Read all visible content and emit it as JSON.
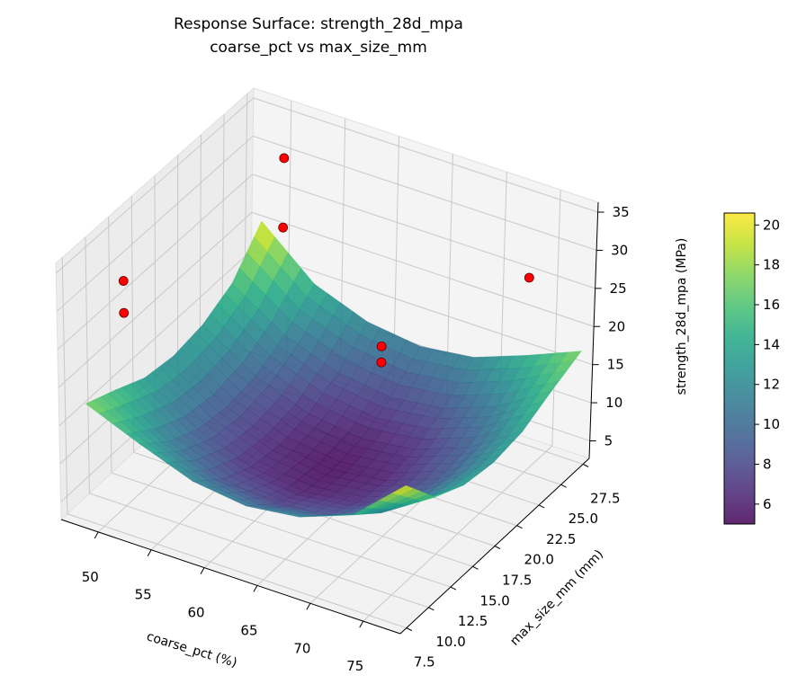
{
  "chart_data": {
    "type": "surface3d",
    "title": "Response Surface: strength_28d_mpa",
    "subtitle": "coarse_pct vs max_size_mm",
    "xlabel": "coarse_pct (%)",
    "ylabel": "max_size_mm (mm)",
    "zlabel": "strength_28d_mpa (MPa)",
    "xlim": [
      46.5,
      78.5
    ],
    "ylim": [
      6.8,
      28.2
    ],
    "zlim": [
      2.7,
      36.3
    ],
    "xticks": [
      "50",
      "55",
      "60",
      "65",
      "70",
      "75"
    ],
    "yticks": [
      "7.5",
      "10.0",
      "12.5",
      "15.0",
      "17.5",
      "20.0",
      "22.5",
      "25.0",
      "27.5"
    ],
    "zticks": [
      "5",
      "10",
      "15",
      "20",
      "25",
      "30",
      "35"
    ],
    "grid": true,
    "colormap": "viridis",
    "surface": {
      "x": [
        48,
        53,
        58,
        63,
        68,
        73,
        78
      ],
      "y": [
        8,
        11.25,
        14.5,
        17.75,
        21,
        24.25,
        27.5
      ],
      "z": [
        [
          17.3,
          14.4,
          11.8,
          10.9,
          11.8,
          14.4,
          20.6
        ],
        [
          15.6,
          11.2,
          8.6,
          7.7,
          8.6,
          11.2,
          15.6
        ],
        [
          13.7,
          9.3,
          6.7,
          5.8,
          6.7,
          9.3,
          13.7
        ],
        [
          13.1,
          8.7,
          6.1,
          5.2,
          6.1,
          8.7,
          13.1
        ],
        [
          13.7,
          9.3,
          6.7,
          5.8,
          6.7,
          9.3,
          13.7
        ],
        [
          15.6,
          11.2,
          8.6,
          7.7,
          8.6,
          11.2,
          15.6
        ],
        [
          20.3,
          14.4,
          11.8,
          10.9,
          11.8,
          14.4,
          17.3
        ]
      ]
    },
    "points": [
      {
        "x": 50,
        "y": 27.5,
        "z": 29.5
      },
      {
        "x": 50,
        "y": 27.5,
        "z": 20.4
      },
      {
        "x": 50,
        "y": 10,
        "z": 32.2
      },
      {
        "x": 50,
        "y": 10,
        "z": 28.0
      },
      {
        "x": 75,
        "y": 25,
        "z": 28.2
      },
      {
        "x": 63.5,
        "y": 22.5,
        "z": 16.5
      },
      {
        "x": 63.5,
        "y": 22.5,
        "z": 14.4
      }
    ],
    "point_color": "#ff0000",
    "colorbar": {
      "range": [
        5.0,
        20.6
      ],
      "ticks": [
        "6",
        "8",
        "10",
        "12",
        "14",
        "16",
        "18",
        "20"
      ]
    }
  }
}
